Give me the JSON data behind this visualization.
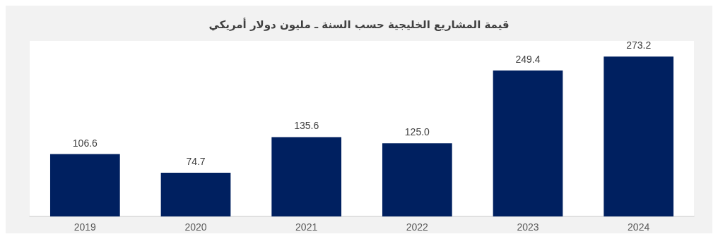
{
  "chart_data": {
    "type": "bar",
    "title": "قيمة المشاريع الخليجية حسب السنة ـ مليون دولار أمريكي",
    "categories": [
      "2019",
      "2020",
      "2021",
      "2022",
      "2023",
      "2024"
    ],
    "values": [
      106.6,
      74.7,
      135.6,
      125.0,
      249.4,
      273.2
    ],
    "value_labels": [
      "106.6",
      "74.7",
      "135.6",
      "125.0",
      "249.4",
      "273.2"
    ],
    "color": "#002060"
  }
}
